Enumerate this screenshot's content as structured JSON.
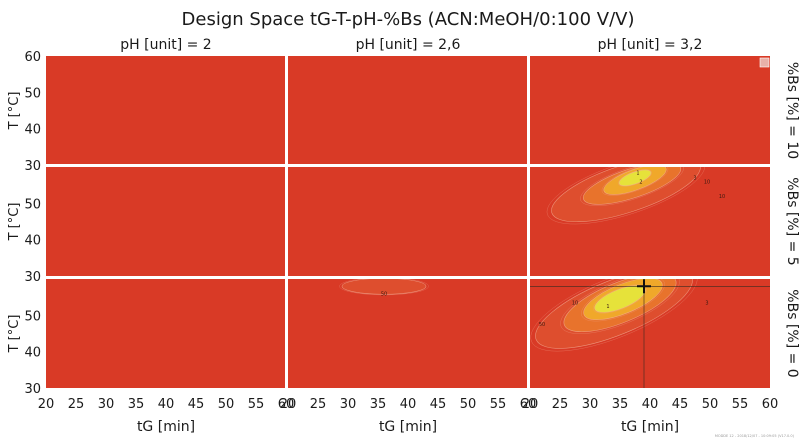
{
  "chart_data": {
    "type": "heatmap",
    "title": "Design Space tG-T-pH-%Bs (ACN:MeOH/0:100 V/V)",
    "columns": [
      {
        "label": "pH [unit] = 2",
        "ph": 2
      },
      {
        "label": "pH [unit] = 2,6",
        "ph": 2.6
      },
      {
        "label": "pH [unit] = 3,2",
        "ph": 3.2
      }
    ],
    "rows": [
      {
        "label": "%Bs [%] = 10",
        "bs": 10
      },
      {
        "label": "%Bs [%] = 5",
        "bs": 5
      },
      {
        "label": "%Bs [%] = 0",
        "bs": 0
      }
    ],
    "xlabel": "tG [min]",
    "ylabel": "T [°C]",
    "xlim": [
      20,
      60
    ],
    "ylim": [
      30,
      60
    ],
    "xticks": [
      "20",
      "25",
      "30",
      "35",
      "40",
      "45",
      "50",
      "55",
      "60"
    ],
    "yticks": [
      "30",
      "40",
      "50",
      "60"
    ],
    "background_color": "#d93a26",
    "regions": [
      {
        "row": 1,
        "col": 2,
        "contours": [
          {
            "level": 10,
            "color": "#de4e2e",
            "center": [
              36,
              54
            ],
            "rx": 13,
            "ry": 6.5,
            "rot": -18
          },
          {
            "level": 5,
            "color": "#e8732c",
            "center": [
              37,
              55.5
            ],
            "rx": 8.5,
            "ry": 4,
            "rot": -18
          },
          {
            "level": 3,
            "color": "#f0a82a",
            "center": [
              37.5,
              56.5
            ],
            "rx": 5.5,
            "ry": 2.8,
            "rot": -20
          },
          {
            "level": 1,
            "color": "#e6e23a",
            "center": [
              37.5,
              57
            ],
            "rx": 2.8,
            "ry": 1.6,
            "rot": -20
          }
        ],
        "labels": [
          {
            "text": "1",
            "x": 38,
            "y": 58
          },
          {
            "text": "2",
            "x": 38.5,
            "y": 55.5
          },
          {
            "text": "3",
            "x": 47.5,
            "y": 56.5
          },
          {
            "text": "10",
            "x": 49.5,
            "y": 55.5
          },
          {
            "text": "10",
            "x": 52,
            "y": 51.5
          }
        ]
      },
      {
        "row": 2,
        "col": 1,
        "contours": [
          {
            "level": 50,
            "color": "#de4e2e",
            "center": [
              36,
              58
            ],
            "rx": 7,
            "ry": 2.2,
            "rot": 0
          }
        ],
        "labels": [
          {
            "text": "50",
            "x": 36,
            "y": 55.5
          }
        ]
      },
      {
        "row": 2,
        "col": 2,
        "contours": [
          {
            "level": 50,
            "color": "#de4e2e",
            "center": [
              34,
              52
            ],
            "rx": 14,
            "ry": 7.5,
            "rot": -22
          },
          {
            "level": 10,
            "color": "#e8732c",
            "center": [
              35,
              53.5
            ],
            "rx": 10,
            "ry": 5.5,
            "rot": -22
          },
          {
            "level": 3,
            "color": "#f0a82a",
            "center": [
              35.5,
              54.5
            ],
            "rx": 7,
            "ry": 4,
            "rot": -22
          },
          {
            "level": 1,
            "color": "#e6e23a",
            "center": [
              35,
              54.5
            ],
            "rx": 4.5,
            "ry": 2.6,
            "rot": -22
          }
        ],
        "labels": [
          {
            "text": "50",
            "x": 22,
            "y": 47
          },
          {
            "text": "10",
            "x": 27.5,
            "y": 53
          },
          {
            "text": "1",
            "x": 33,
            "y": 52
          },
          {
            "text": "3",
            "x": 49.5,
            "y": 53
          }
        ]
      }
    ],
    "marker": {
      "row": 2,
      "col": 2,
      "x": 39,
      "y": 58
    }
  },
  "footer_text": "MODDE 12 - 2018/12/07 - 10:09:05 (V17.0.0)"
}
